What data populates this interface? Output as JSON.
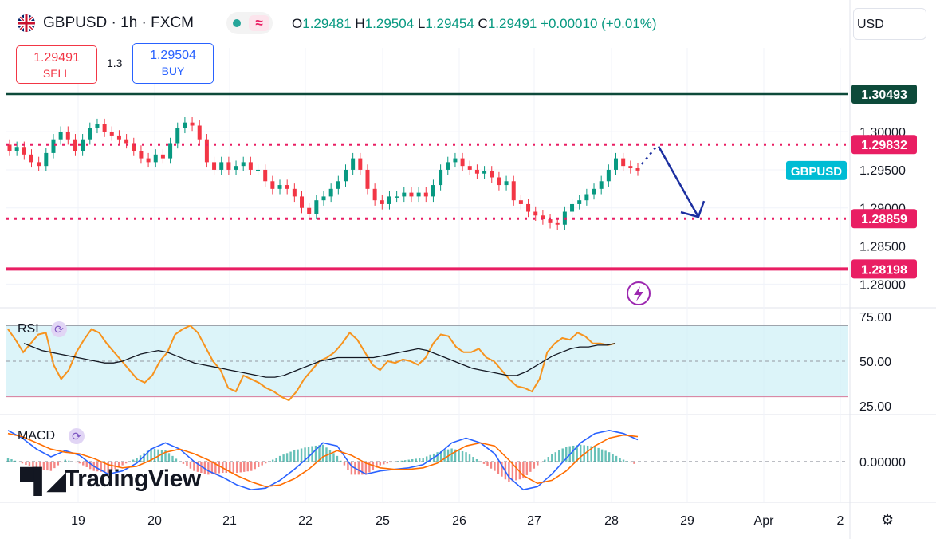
{
  "header": {
    "symbol": "GBPUSD · 1h · FXCM",
    "ohlc": {
      "open_label": "O",
      "open": "1.29481",
      "high_label": "H",
      "high": "1.29504",
      "low_label": "L",
      "low": "1.29454",
      "close_label": "C",
      "close": "1.29491",
      "change": "+0.00010 (+0.01%)"
    },
    "currency": "USD"
  },
  "trade": {
    "sell_price": "1.29491",
    "sell_label": "SELL",
    "spread": "1.3",
    "buy_price": "1.29504",
    "buy_label": "BUY"
  },
  "branding": {
    "logo_text": "TradingView"
  },
  "colors": {
    "up": "#089981",
    "down": "#f23645",
    "pink": "#e91e63",
    "navy": "#1c2fa0",
    "rsi": "#f7931e",
    "macd": "#2962ff",
    "signal": "#ff6d00"
  },
  "chart_data": {
    "type": "candlestick",
    "x_ticks": [
      "19",
      "20",
      "21",
      "22",
      "25",
      "26",
      "27",
      "28",
      "29",
      "Apr",
      "2"
    ],
    "price_axis": {
      "ticks": [
        "1.30000",
        "1.29500",
        "1.29000",
        "1.28500",
        "1.28000"
      ],
      "range": [
        1.277,
        1.311
      ]
    },
    "horizontal_levels": [
      {
        "value": 1.30493,
        "label": "1.30493",
        "color": "#0d4a3a",
        "style": "solid"
      },
      {
        "value": 1.29832,
        "label": "1.29832",
        "color": "#e91e63",
        "style": "dotted"
      },
      {
        "value": 1.28859,
        "label": "1.28859",
        "color": "#e91e63",
        "style": "dotted"
      },
      {
        "value": 1.28198,
        "label": "1.28198",
        "color": "#e91e63",
        "style": "solid"
      }
    ],
    "symbol_tag": {
      "label": "GBPUSD",
      "value": 1.2949,
      "color": "#00bcd4"
    },
    "projection": {
      "from": 1.2949,
      "via": 1.2985,
      "to": 1.2886
    },
    "candles_close": [
      1.2975,
      1.298,
      1.297,
      1.296,
      1.2955,
      1.2972,
      1.299,
      1.3,
      1.299,
      1.2975,
      1.299,
      1.3005,
      1.301,
      1.3,
      1.2995,
      1.299,
      1.2985,
      1.2975,
      1.2965,
      1.296,
      1.297,
      1.2965,
      1.2985,
      1.3005,
      1.3012,
      1.3008,
      1.299,
      1.296,
      1.295,
      1.296,
      1.295,
      1.2955,
      1.296,
      1.295,
      1.295,
      1.2935,
      1.2925,
      1.293,
      1.2925,
      1.2915,
      1.29,
      1.2892,
      1.291,
      1.2915,
      1.2925,
      1.2935,
      1.295,
      1.2965,
      1.295,
      1.2925,
      1.291,
      1.2905,
      1.2915,
      1.2915,
      1.292,
      1.2915,
      1.292,
      1.2915,
      1.293,
      1.295,
      1.296,
      1.2965,
      1.2955,
      1.295,
      1.2945,
      1.2948,
      1.294,
      1.293,
      1.2935,
      1.291,
      1.2905,
      1.2895,
      1.289,
      1.2885,
      1.288,
      1.2878,
      1.2895,
      1.2905,
      1.291,
      1.2918,
      1.2925,
      1.2935,
      1.295,
      1.2965,
      1.2955,
      1.2952,
      1.2949
    ],
    "rsi": {
      "label": "RSI",
      "axis_ticks": [
        "75.00",
        "50.00",
        "25.00"
      ],
      "range": [
        20,
        80
      ],
      "band": [
        30,
        70
      ],
      "values": [
        68,
        62,
        55,
        60,
        65,
        66,
        48,
        40,
        45,
        55,
        62,
        68,
        66,
        60,
        55,
        50,
        45,
        40,
        38,
        42,
        50,
        55,
        65,
        68,
        70,
        66,
        58,
        50,
        45,
        35,
        33,
        42,
        40,
        38,
        35,
        33,
        30,
        28,
        33,
        40,
        45,
        50,
        52,
        55,
        60,
        66,
        62,
        55,
        48,
        45,
        50,
        49,
        51,
        50,
        48,
        52,
        60,
        65,
        64,
        58,
        55,
        55,
        57,
        52,
        50,
        45,
        40,
        36,
        35,
        33,
        40,
        55,
        60,
        63,
        62,
        66,
        64,
        60,
        60,
        59,
        60
      ],
      "ma": [
        60,
        58,
        56,
        55,
        54,
        53,
        52,
        51,
        50,
        49,
        49,
        50,
        52,
        54,
        55,
        56,
        55,
        53,
        51,
        49,
        48,
        47,
        46,
        45,
        44,
        43,
        42,
        41,
        41,
        42,
        44,
        46,
        48,
        50,
        51,
        52,
        52,
        52,
        52,
        52,
        53,
        54,
        55,
        56,
        57,
        56,
        54,
        52,
        50,
        48,
        46,
        45,
        44,
        43,
        42,
        42,
        44,
        47,
        50,
        53,
        55,
        57,
        58,
        58,
        59,
        59,
        60
      ]
    },
    "macd": {
      "label": "MACD",
      "axis_ticks": [
        "0.00000"
      ],
      "range": [
        -0.0022,
        0.0026
      ],
      "macd_line": [
        0.002,
        0.0015,
        0.0008,
        0.0003,
        0.0007,
        0.0004,
        -0.0003,
        -0.0008,
        -0.0006,
        -0.0001,
        0.0008,
        0.0012,
        0.0008,
        0.0,
        -0.0006,
        -0.001,
        -0.0015,
        -0.0018,
        -0.0017,
        -0.0012,
        -0.0005,
        0.0003,
        0.0012,
        0.001,
        -0.0003,
        -0.0008,
        -0.0006,
        -0.0005,
        -0.0004,
        -0.0002,
        0.0004,
        0.0012,
        0.0015,
        0.0012,
        0.0005,
        -0.001,
        -0.0018,
        -0.0016,
        -0.0008,
        0.0002,
        0.0012,
        0.0018,
        0.002,
        0.0018,
        0.0014
      ],
      "signal_line": [
        0.0018,
        0.0016,
        0.0012,
        0.0008,
        0.0006,
        0.0005,
        0.0002,
        -0.0002,
        -0.0004,
        -0.0003,
        0.0001,
        0.0006,
        0.0008,
        0.0005,
        0.0001,
        -0.0004,
        -0.0009,
        -0.0013,
        -0.0016,
        -0.0015,
        -0.0011,
        -0.0005,
        0.0003,
        0.0007,
        0.0004,
        -0.0001,
        -0.0004,
        -0.0005,
        -0.0005,
        -0.0004,
        -0.0001,
        0.0005,
        0.001,
        0.0012,
        0.001,
        0.0001,
        -0.0009,
        -0.0014,
        -0.0012,
        -0.0006,
        0.0003,
        0.001,
        0.0015,
        0.0017,
        0.0016
      ]
    }
  }
}
